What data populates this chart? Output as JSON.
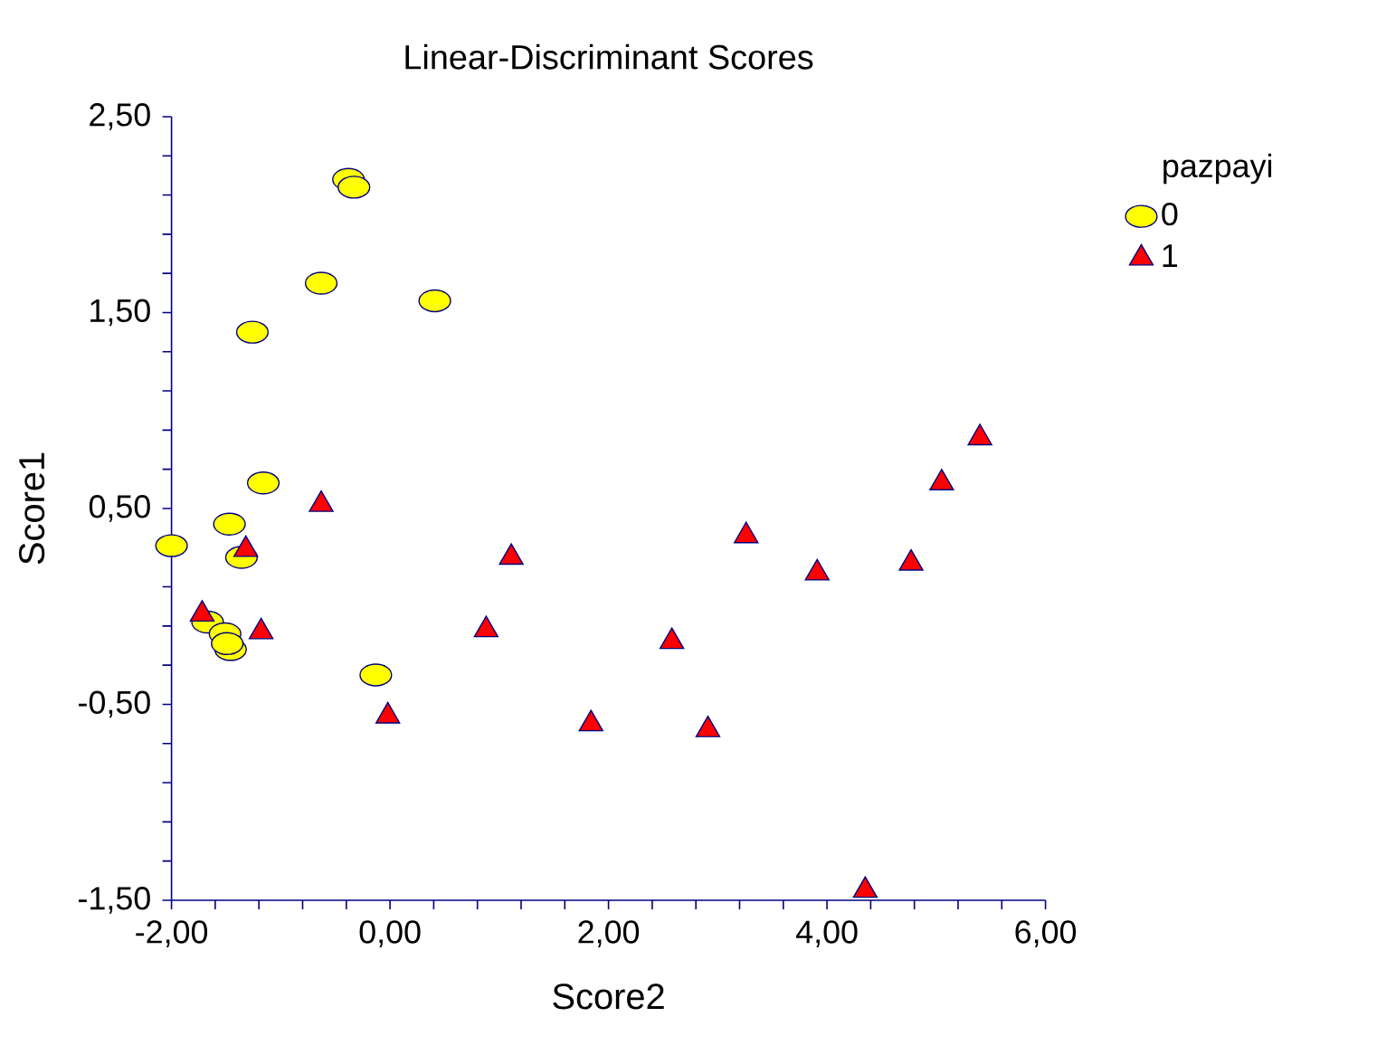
{
  "chart_data": {
    "type": "scatter",
    "title": "Linear-Discriminant Scores",
    "xlabel": "Score2",
    "ylabel": "Score1",
    "legend_title": "pazpayi",
    "legend": "top right",
    "grid": false,
    "xlim": [
      -2,
      6
    ],
    "ylim": [
      -1.5,
      2.5
    ],
    "xticks": [
      {
        "value": -2,
        "label": "-2,00"
      },
      {
        "value": -1.6,
        "label": null
      },
      {
        "value": -1.2,
        "label": null
      },
      {
        "value": -0.8,
        "label": null
      },
      {
        "value": -0.4,
        "label": null
      },
      {
        "value": 0,
        "label": "0,00"
      },
      {
        "value": 0.4,
        "label": null
      },
      {
        "value": 0.8,
        "label": null
      },
      {
        "value": 1.2,
        "label": null
      },
      {
        "value": 1.6,
        "label": null
      },
      {
        "value": 2,
        "label": "2,00"
      },
      {
        "value": 2.4,
        "label": null
      },
      {
        "value": 2.8,
        "label": null
      },
      {
        "value": 3.2,
        "label": null
      },
      {
        "value": 3.6,
        "label": null
      },
      {
        "value": 4,
        "label": "4,00"
      },
      {
        "value": 4.4,
        "label": null
      },
      {
        "value": 4.8,
        "label": null
      },
      {
        "value": 5.2,
        "label": null
      },
      {
        "value": 5.6,
        "label": null
      },
      {
        "value": 6,
        "label": "6,00"
      }
    ],
    "yticks": [
      {
        "value": -1.5,
        "label": "-1,50"
      },
      {
        "value": -1.3,
        "label": null
      },
      {
        "value": -1.1,
        "label": null
      },
      {
        "value": -0.9,
        "label": null
      },
      {
        "value": -0.7,
        "label": null
      },
      {
        "value": -0.5,
        "label": "-0,50"
      },
      {
        "value": -0.3,
        "label": null
      },
      {
        "value": -0.1,
        "label": null
      },
      {
        "value": 0.1,
        "label": null
      },
      {
        "value": 0.3,
        "label": null
      },
      {
        "value": 0.5,
        "label": "0,50"
      },
      {
        "value": 0.7,
        "label": null
      },
      {
        "value": 0.9,
        "label": null
      },
      {
        "value": 1.1,
        "label": null
      },
      {
        "value": 1.3,
        "label": null
      },
      {
        "value": 1.5,
        "label": "1,50"
      },
      {
        "value": 1.7,
        "label": null
      },
      {
        "value": 1.9,
        "label": null
      },
      {
        "value": 2.1,
        "label": null
      },
      {
        "value": 2.3,
        "label": null
      },
      {
        "value": 2.5,
        "label": "2,50"
      }
    ],
    "series": [
      {
        "name": "0",
        "color": "#ffff00",
        "marker": "circle",
        "x": [
          -0.38,
          -0.33,
          -0.63,
          0.41,
          -1.26,
          -1.16,
          -1.47,
          -2.0,
          -1.36,
          -1.67,
          -1.51,
          -1.46,
          -1.49,
          -0.13
        ],
        "values": [
          2.18,
          2.14,
          1.65,
          1.56,
          1.4,
          0.63,
          0.42,
          0.31,
          0.25,
          -0.08,
          -0.14,
          -0.22,
          -0.19,
          -0.35
        ]
      },
      {
        "name": "1",
        "color": "#ff0000",
        "marker": "triangle",
        "x": [
          -1.72,
          -1.18,
          -1.32,
          -0.63,
          -0.02,
          1.11,
          0.88,
          1.84,
          2.58,
          2.91,
          3.26,
          3.91,
          4.77,
          5.05,
          5.4,
          4.35
        ],
        "values": [
          -0.04,
          -0.13,
          0.29,
          0.52,
          -0.56,
          0.25,
          -0.12,
          -0.6,
          -0.18,
          -0.63,
          0.36,
          0.17,
          0.22,
          0.63,
          0.86,
          -1.45
        ]
      }
    ]
  }
}
